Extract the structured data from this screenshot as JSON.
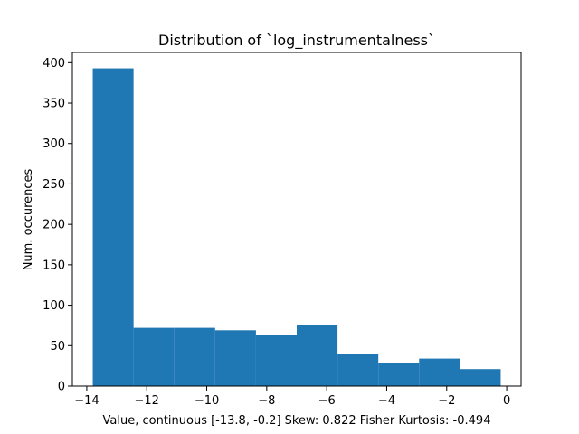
{
  "chart_data": {
    "type": "bar",
    "title": "Distribution of `log_instrumentalness`",
    "xlabel": "Value, continuous [-13.8, -0.2]    Skew: 0.822 Fisher Kurtosis: -0.494",
    "ylabel": "Num. occurences",
    "bin_edges": [
      -13.8,
      -12.44,
      -11.08,
      -9.72,
      -8.36,
      -7.0,
      -5.64,
      -4.28,
      -2.92,
      -1.56,
      -0.2
    ],
    "values": [
      393,
      72,
      72,
      69,
      63,
      76,
      40,
      28,
      34,
      21
    ],
    "xlim": [
      -14.48,
      0.48
    ],
    "ylim": [
      0,
      412.65
    ],
    "xticks": [
      -14,
      -12,
      -10,
      -8,
      -6,
      -4,
      -2,
      0
    ],
    "xtick_labels": [
      "−14",
      "−12",
      "−10",
      "−8",
      "−6",
      "−4",
      "−2",
      "0"
    ],
    "yticks": [
      0,
      50,
      100,
      150,
      200,
      250,
      300,
      350,
      400
    ],
    "ytick_labels": [
      "0",
      "50",
      "100",
      "150",
      "200",
      "250",
      "300",
      "350",
      "400"
    ],
    "bar_color": "#1f77b4",
    "grid": false,
    "legend": false
  }
}
